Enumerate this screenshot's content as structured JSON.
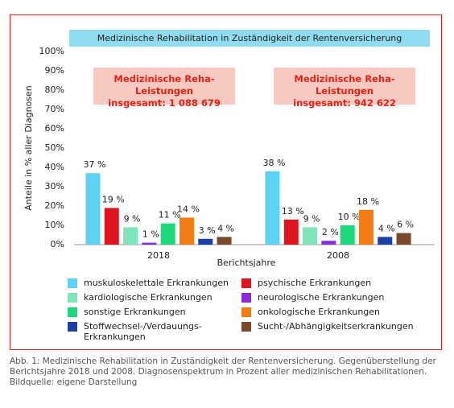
{
  "chart_data": {
    "type": "bar",
    "title": "Medizinische Rehabilitation in Zuständigkeit der Rentenversicherung",
    "y_label": "Anteile in % aller Diagnosen",
    "x_label": "Berichtsjahre",
    "categories": [
      "2018",
      "2008"
    ],
    "annotations": [
      "Medizinische Reha-Leistungen\ninsgesamt: 1 088 679",
      "Medizinische Reha-Leistungen\ninsgesamt: 942 622"
    ],
    "ylim": [
      0,
      100
    ],
    "yticks": [
      {
        "value": 0,
        "label": "0%"
      },
      {
        "value": 10,
        "label": "10%"
      },
      {
        "value": 20,
        "label": "20%"
      },
      {
        "value": 30,
        "label": "30%"
      },
      {
        "value": 40,
        "label": "40%"
      },
      {
        "value": 50,
        "label": "50%"
      },
      {
        "value": 60,
        "label": "60%"
      },
      {
        "value": 70,
        "label": "70%"
      },
      {
        "value": 80,
        "label": "80%"
      },
      {
        "value": 90,
        "label": "90%"
      },
      {
        "value": 100,
        "label": "100%"
      }
    ],
    "series": [
      {
        "name": "muskuloskelettale Erkrankungen",
        "color": "#5dd2f2",
        "values": [
          37,
          38
        ],
        "value_labels": [
          "37 %",
          "38 %"
        ]
      },
      {
        "name": "psychische Erkrankungen",
        "color": "#e0141e",
        "values": [
          19,
          13
        ],
        "value_labels": [
          "19 %",
          "13 %"
        ]
      },
      {
        "name": "kardiologische Erkrankungen",
        "color": "#80e4bb",
        "values": [
          9,
          9
        ],
        "value_labels": [
          "9 %",
          "9 %"
        ]
      },
      {
        "name": "neurologische Erkrankungen",
        "color": "#8b2be0",
        "values": [
          1,
          2
        ],
        "value_labels": [
          "1 %",
          "2 %"
        ]
      },
      {
        "name": "sonstige Erkrankungen",
        "color": "#1cd97c",
        "values": [
          11,
          10
        ],
        "value_labels": [
          "11 %",
          "10 %"
        ]
      },
      {
        "name": "onkologische Erkrankungen",
        "color": "#f57b14",
        "values": [
          14,
          18
        ],
        "value_labels": [
          "14 %",
          "18 %"
        ]
      },
      {
        "name": "Stoffwechsel-/Verdauungs-\nErkrankungen",
        "color": "#1c3fa8",
        "values": [
          3,
          4
        ],
        "value_labels": [
          "3 %",
          "4 %"
        ]
      },
      {
        "name": "Sucht-/Abhängigkeitserkrankungen",
        "color": "#7a4a2c",
        "values": [
          4,
          6
        ],
        "value_labels": [
          "4 %",
          "6 %"
        ]
      }
    ],
    "caption": "Abb. 1: Medizinische Rehabilitation in Zuständigkeit der Rentenversicherung. Gegenüberstellung der\nBerichtsjahre 2018 und 2008. Diagnosenspektrum in Prozent aller medizinischen Rehabilitationen.\nBildquelle: eigene Darstellung"
  }
}
